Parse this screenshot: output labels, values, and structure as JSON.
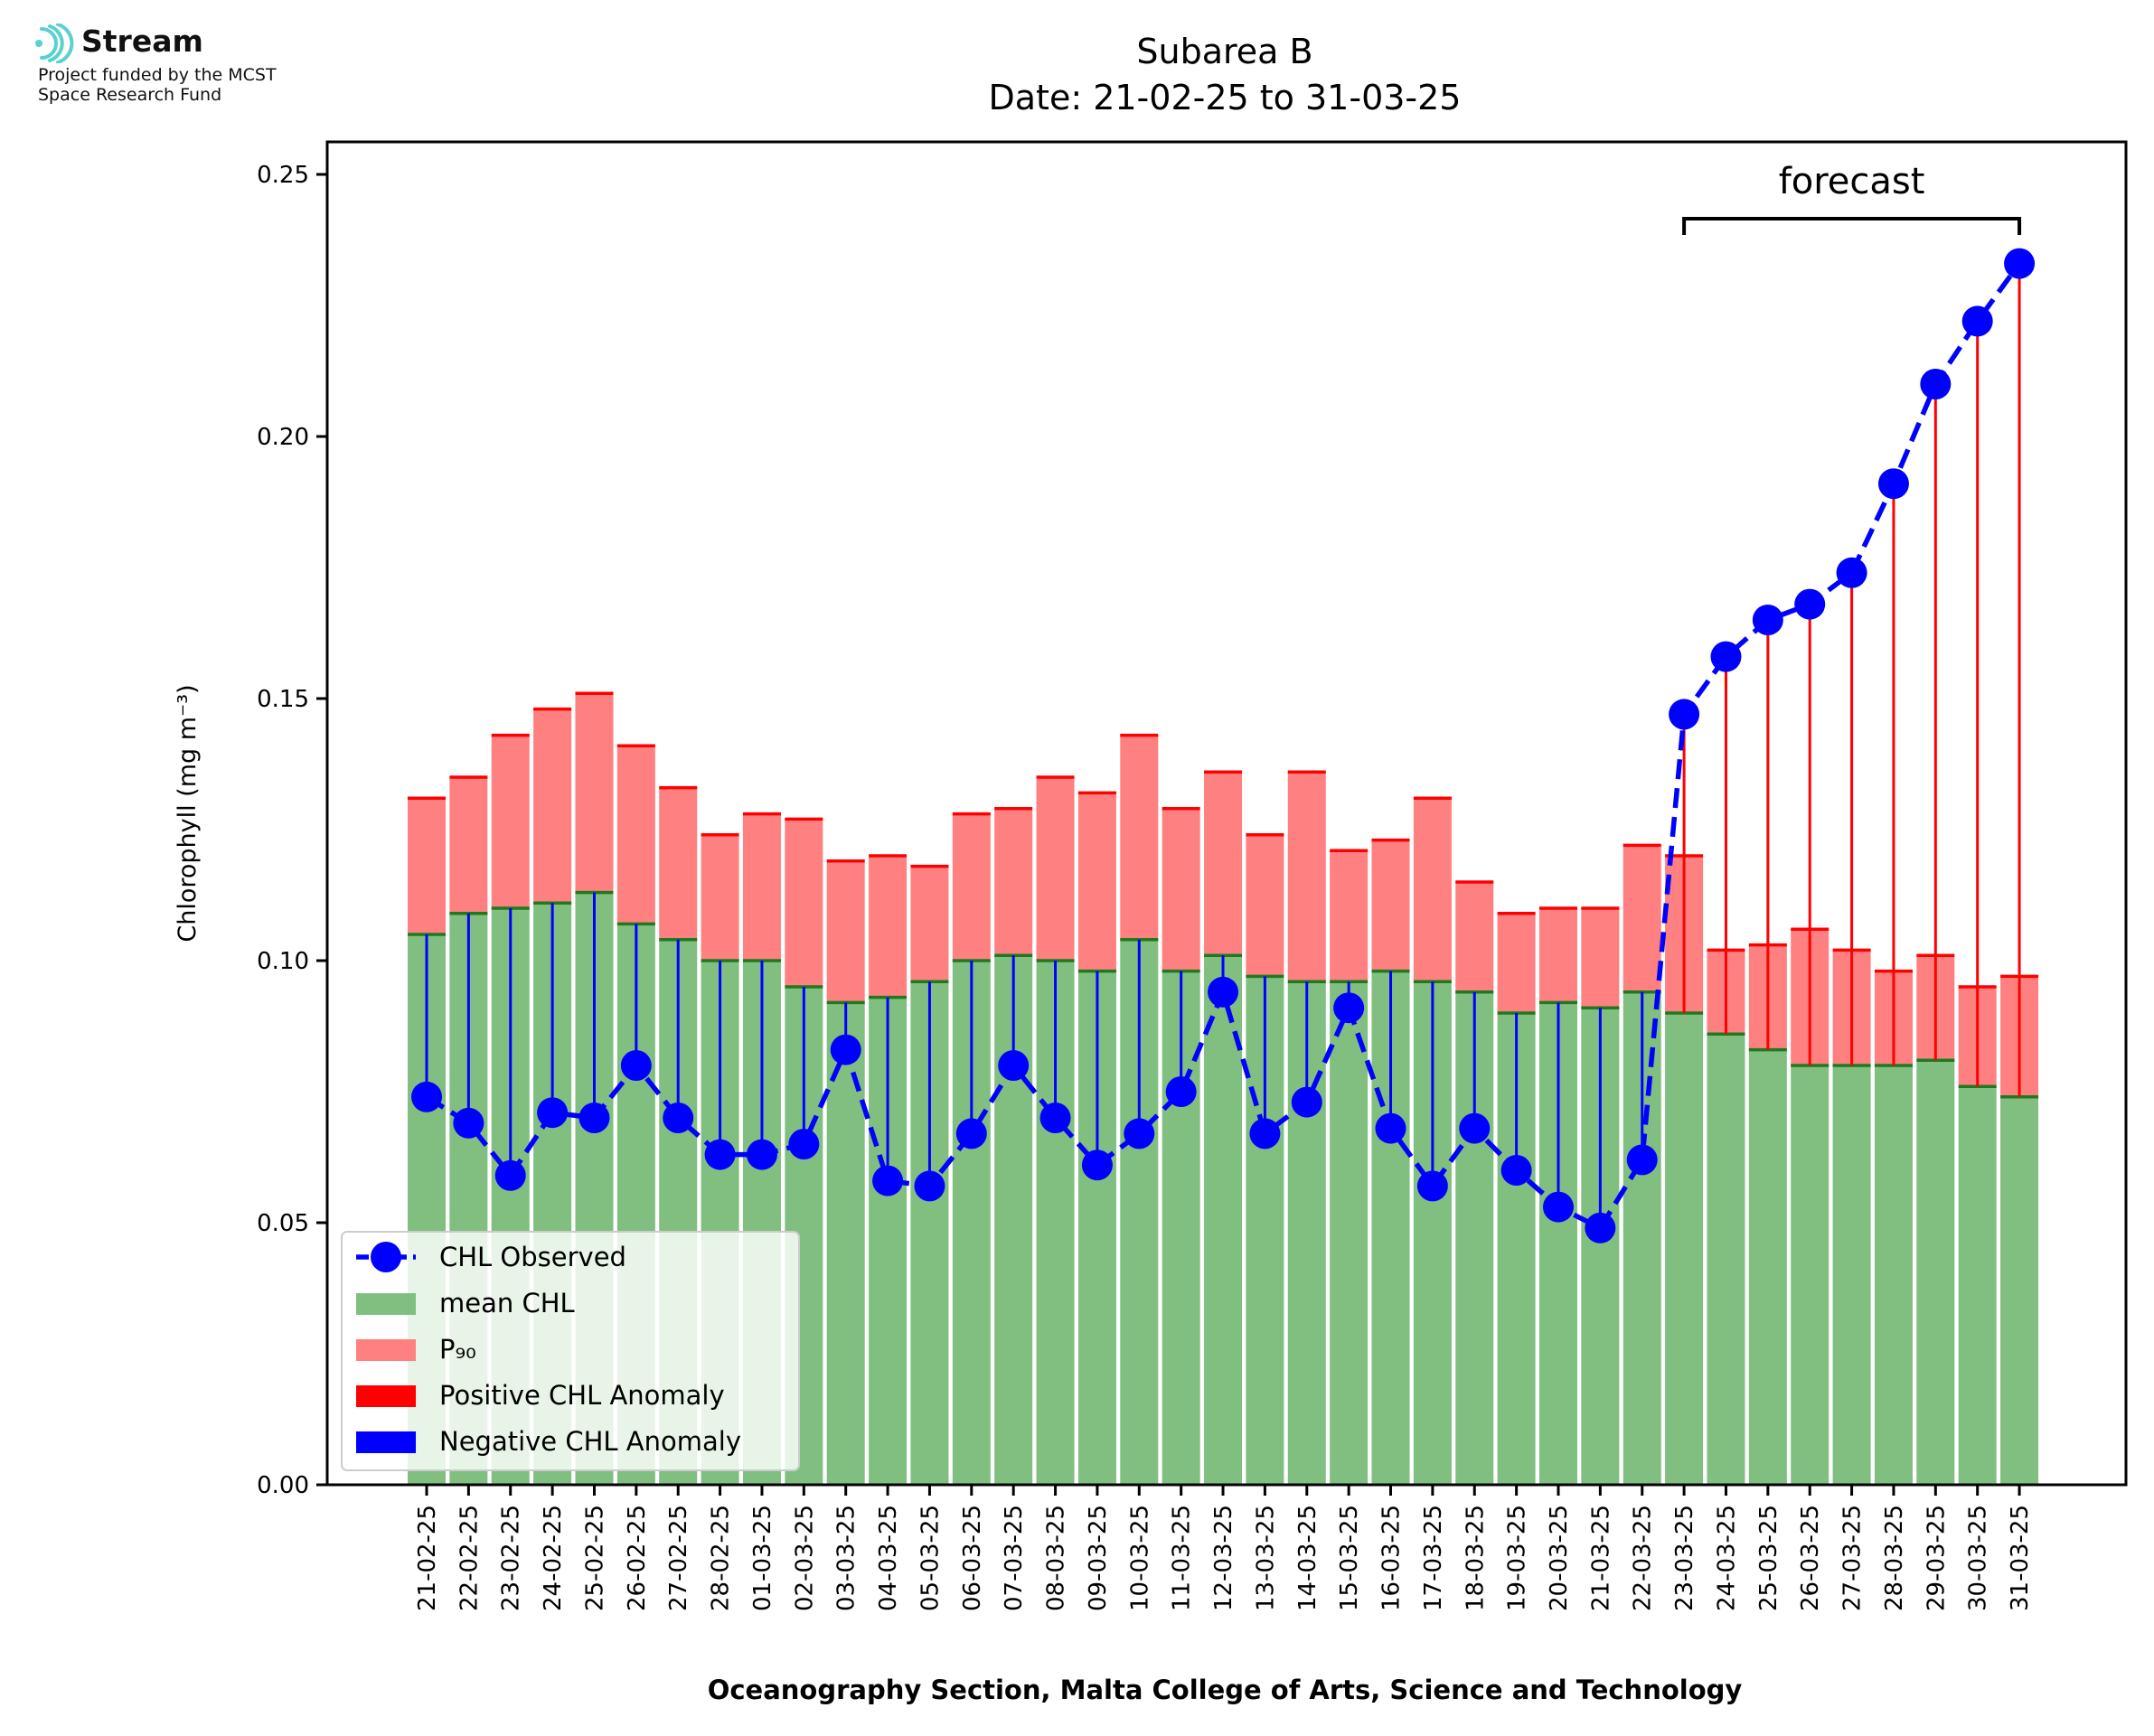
{
  "logo": {
    "name": "Stream",
    "line1": "Project funded by the MCST",
    "line2": "Space Research Fund",
    "accent_color": "#5ad1cf"
  },
  "chart_data": {
    "type": "bar",
    "title": "Subarea B",
    "subtitle": "Date: 21-02-25 to 31-03-25",
    "xlabel": "Oceanography Section, Malta College of Arts, Science and Technology",
    "ylabel": "Chlorophyll (mg m⁻³)",
    "ylim": [
      0,
      0.256
    ],
    "yticks": [
      "0.00",
      "0.05",
      "0.10",
      "0.15",
      "0.20",
      "0.25"
    ],
    "grid": false,
    "legend_placement": "lower-left",
    "annotation": "forecast",
    "forecast_range": [
      "23-03-25",
      "31-03-25"
    ],
    "categories": [
      "21-02-25",
      "22-02-25",
      "23-02-25",
      "24-02-25",
      "25-02-25",
      "26-02-25",
      "27-02-25",
      "28-02-25",
      "01-03-25",
      "02-03-25",
      "03-03-25",
      "04-03-25",
      "05-03-25",
      "06-03-25",
      "07-03-25",
      "08-03-25",
      "09-03-25",
      "10-03-25",
      "11-03-25",
      "12-03-25",
      "13-03-25",
      "14-03-25",
      "15-03-25",
      "16-03-25",
      "17-03-25",
      "18-03-25",
      "19-03-25",
      "20-03-25",
      "21-03-25",
      "22-03-25",
      "23-03-25",
      "24-03-25",
      "25-03-25",
      "26-03-25",
      "27-03-25",
      "28-03-25",
      "29-03-25",
      "30-03-25",
      "31-03-25"
    ],
    "series": [
      {
        "name": "CHL Observed",
        "color": "#0000ff",
        "values": [
          0.074,
          0.069,
          0.059,
          0.071,
          0.07,
          0.08,
          0.07,
          0.063,
          0.063,
          0.065,
          0.083,
          0.058,
          0.057,
          0.067,
          0.08,
          0.07,
          0.061,
          0.067,
          0.075,
          0.094,
          0.067,
          0.073,
          0.091,
          0.068,
          0.057,
          0.068,
          0.06,
          0.053,
          0.049,
          0.062,
          0.147,
          0.158,
          0.165,
          0.168,
          0.174,
          0.191,
          0.21,
          0.222,
          0.233
        ]
      },
      {
        "name": "mean CHL",
        "color": "#80bf80",
        "values": [
          0.105,
          0.109,
          0.11,
          0.111,
          0.113,
          0.107,
          0.104,
          0.1,
          0.1,
          0.095,
          0.092,
          0.093,
          0.096,
          0.1,
          0.101,
          0.1,
          0.098,
          0.104,
          0.098,
          0.101,
          0.097,
          0.096,
          0.096,
          0.098,
          0.096,
          0.094,
          0.09,
          0.092,
          0.091,
          0.094,
          0.09,
          0.086,
          0.083,
          0.08,
          0.08,
          0.08,
          0.081,
          0.076,
          0.074
        ]
      },
      {
        "name": "P₉₀",
        "color": "#ff8080",
        "values": [
          0.131,
          0.135,
          0.143,
          0.148,
          0.151,
          0.141,
          0.133,
          0.124,
          0.128,
          0.127,
          0.119,
          0.12,
          0.118,
          0.128,
          0.129,
          0.135,
          0.132,
          0.143,
          0.129,
          0.136,
          0.124,
          0.136,
          0.121,
          0.123,
          0.131,
          0.115,
          0.109,
          0.11,
          0.11,
          0.122,
          0.12,
          0.102,
          0.103,
          0.106,
          0.102,
          0.098,
          0.101,
          0.095,
          0.097
        ]
      },
      {
        "name": "Positive CHL Anomaly",
        "color": "#ff0000"
      },
      {
        "name": "Negative CHL Anomaly",
        "color": "#0000ff"
      }
    ]
  }
}
